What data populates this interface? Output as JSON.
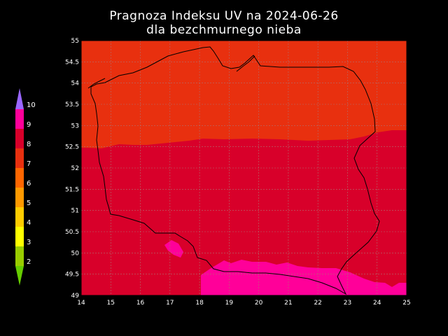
{
  "title_line1": "Pragnoza Indeksu UV na 2024-06-26",
  "title_line2": "dla bezchmurnego nieba",
  "axes": {
    "x_ticks": [
      "14",
      "15",
      "16",
      "17",
      "18",
      "19",
      "20",
      "21",
      "22",
      "23",
      "24",
      "25"
    ],
    "y_ticks": [
      "55",
      "54.5",
      "54",
      "53.5",
      "53",
      "52.5",
      "52",
      "51.5",
      "51",
      "50.5",
      "50",
      "49.5",
      "49"
    ],
    "x_range": [
      14,
      25
    ],
    "y_range": [
      49,
      55
    ],
    "grid": true
  },
  "legend": {
    "levels": [
      {
        "label": "",
        "color": "#66cc00"
      },
      {
        "label": "2",
        "color": "#99cc00"
      },
      {
        "label": "3",
        "color": "#ffff00"
      },
      {
        "label": "4",
        "color": "#ffcc00"
      },
      {
        "label": "5",
        "color": "#ff9900"
      },
      {
        "label": "6",
        "color": "#ff6600"
      },
      {
        "label": "7",
        "color": "#e8300f"
      },
      {
        "label": "8",
        "color": "#d8002a"
      },
      {
        "label": "9",
        "color": "#ff0099"
      },
      {
        "label": "10",
        "color": "#9966ff"
      }
    ]
  },
  "zones": {
    "north_color": "#e8300f",
    "south_color": "#d8002a",
    "mountain_color": "#ff0099"
  }
}
